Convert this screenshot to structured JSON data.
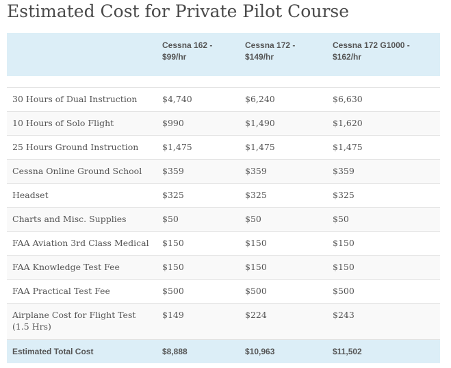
{
  "title": "Estimated Cost for Private Pilot Course",
  "header": {
    "col0": "",
    "col1": "Cessna 162 - $99/hr",
    "col2": "Cessna 172 - $149/hr",
    "col3": "Cessna 172 G1000 - $162/hr"
  },
  "rows": [
    {
      "item": "30 Hours of Dual Instruction",
      "c162": "$4,740",
      "c172": "$6,240",
      "c172g": "$6,630"
    },
    {
      "item": "10 Hours of Solo Flight",
      "c162": "$990",
      "c172": "$1,490",
      "c172g": "$1,620"
    },
    {
      "item": "25 Hours Ground Instruction",
      "c162": "$1,475",
      "c172": "$1,475",
      "c172g": "$1,475"
    },
    {
      "item": "Cessna Online Ground School",
      "c162": "$359",
      "c172": "$359",
      "c172g": "$359"
    },
    {
      "item": "Headset",
      "c162": "$325",
      "c172": "$325",
      "c172g": "$325"
    },
    {
      "item": "Charts and Misc. Supplies",
      "c162": "$50",
      "c172": "$50",
      "c172g": "$50"
    },
    {
      "item": "FAA Aviation 3rd Class Medical",
      "c162": "$150",
      "c172": "$150",
      "c172g": "$150"
    },
    {
      "item": "FAA Knowledge Test Fee",
      "c162": "$150",
      "c172": "$150",
      "c172g": "$150"
    },
    {
      "item": "FAA Practical Test Fee",
      "c162": "$500",
      "c172": "$500",
      "c172g": "$500"
    },
    {
      "item": "Airplane Cost for Flight Test (1.5 Hrs)",
      "c162": "$149",
      "c172": "$224",
      "c172g": "$243"
    }
  ],
  "footer": {
    "label": "Estimated Total Cost",
    "c162": "$8,888",
    "c172": "$10,963",
    "c172g": "$11,502"
  },
  "colors": {
    "header_bg": "#dceef7",
    "stripe_bg": "#f9f9f9",
    "text": "#555555",
    "border": "#e2e2e2"
  }
}
